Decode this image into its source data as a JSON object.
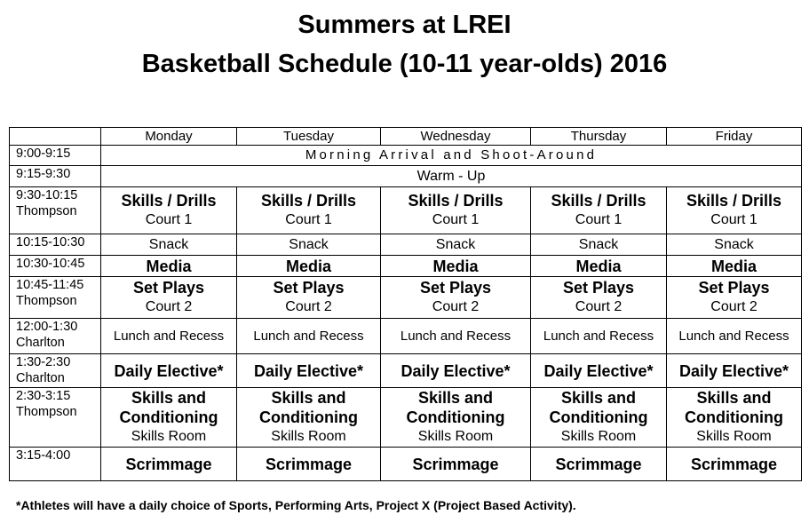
{
  "title": "Summers at LREI",
  "subtitle": "Basketball Schedule (10-11 year-olds) 2016",
  "days": [
    "Monday",
    "Tuesday",
    "Wednesday",
    "Thursday",
    "Friday"
  ],
  "rows": [
    {
      "time": [
        "9:00-9:15"
      ],
      "span": "Morning Arrival and Shoot-Around",
      "spaced": true
    },
    {
      "time": [
        "9:15-9:30"
      ],
      "span": "Warm - Up"
    },
    {
      "time": [
        "9:30-10:15",
        "Thompson"
      ],
      "cells": [
        [
          {
            "t": "Skills / Drills",
            "b": true
          },
          {
            "t": "Court 1"
          }
        ],
        [
          {
            "t": "Skills / Drills",
            "b": true
          },
          {
            "t": "Court 1"
          }
        ],
        [
          {
            "t": "Skills / Drills",
            "b": true
          },
          {
            "t": "Court 1"
          }
        ],
        [
          {
            "t": "Skills / Drills",
            "b": true
          },
          {
            "t": "Court 1"
          }
        ],
        [
          {
            "t": "Skills / Drills",
            "b": true
          },
          {
            "t": "Court 1"
          }
        ]
      ]
    },
    {
      "time": [
        "10:15-10:30"
      ],
      "cells": [
        [
          {
            "t": "Snack"
          }
        ],
        [
          {
            "t": "Snack"
          }
        ],
        [
          {
            "t": "Snack"
          }
        ],
        [
          {
            "t": "Snack"
          }
        ],
        [
          {
            "t": "Snack"
          }
        ]
      ]
    },
    {
      "time": [
        "10:30-10:45"
      ],
      "cells": [
        [
          {
            "t": "Media",
            "b": true
          }
        ],
        [
          {
            "t": "Media",
            "b": true
          }
        ],
        [
          {
            "t": "Media",
            "b": true
          }
        ],
        [
          {
            "t": "Media",
            "b": true
          }
        ],
        [
          {
            "t": "Media",
            "b": true
          }
        ]
      ]
    },
    {
      "time": [
        "10:45-11:45",
        "Thompson"
      ],
      "cells": [
        [
          {
            "t": "Set Plays",
            "b": true
          },
          {
            "t": "Court 2"
          }
        ],
        [
          {
            "t": "Set Plays",
            "b": true
          },
          {
            "t": "Court 2"
          }
        ],
        [
          {
            "t": "Set Plays",
            "b": true
          },
          {
            "t": "Court 2"
          }
        ],
        [
          {
            "t": "Set Plays",
            "b": true
          },
          {
            "t": "Court 2"
          }
        ],
        [
          {
            "t": "Set Plays",
            "b": true
          },
          {
            "t": "Court 2"
          }
        ]
      ]
    },
    {
      "time": [
        "12:00-1:30",
        "Charlton"
      ],
      "cells": [
        [
          {
            "t": "Lunch and Recess",
            "s": true
          }
        ],
        [
          {
            "t": "Lunch and Recess",
            "s": true
          }
        ],
        [
          {
            "t": "Lunch and Recess",
            "s": true
          }
        ],
        [
          {
            "t": "Lunch and Recess",
            "s": true
          }
        ],
        [
          {
            "t": "Lunch and Recess",
            "s": true
          }
        ]
      ]
    },
    {
      "time": [
        "1:30-2:30",
        "Charlton"
      ],
      "cells": [
        [
          {
            "t": "Daily Elective*",
            "b": true
          }
        ],
        [
          {
            "t": "Daily Elective*",
            "b": true
          }
        ],
        [
          {
            "t": "Daily Elective*",
            "b": true
          }
        ],
        [
          {
            "t": "Daily Elective*",
            "b": true
          }
        ],
        [
          {
            "t": "Daily Elective*",
            "b": true
          }
        ]
      ]
    },
    {
      "time": [
        "2:30-3:15",
        "Thompson"
      ],
      "cells": [
        [
          {
            "t": "Skills and",
            "b": true
          },
          {
            "t": "Conditioning",
            "b": true
          },
          {
            "t": "Skills Room"
          }
        ],
        [
          {
            "t": "Skills and",
            "b": true
          },
          {
            "t": "Conditioning",
            "b": true
          },
          {
            "t": "Skills Room"
          }
        ],
        [
          {
            "t": "Skills and",
            "b": true
          },
          {
            "t": "Conditioning",
            "b": true
          },
          {
            "t": "Skills Room"
          }
        ],
        [
          {
            "t": "Skills and",
            "b": true
          },
          {
            "t": "Conditioning",
            "b": true
          },
          {
            "t": "Skills Room"
          }
        ],
        [
          {
            "t": "Skills and",
            "b": true
          },
          {
            "t": "Conditioning",
            "b": true
          },
          {
            "t": "Skills Room"
          }
        ]
      ]
    },
    {
      "time": [
        "3:15-4:00"
      ],
      "cells": [
        [
          {
            "t": "Scrimmage",
            "b": true
          }
        ],
        [
          {
            "t": "Scrimmage",
            "b": true
          }
        ],
        [
          {
            "t": "Scrimmage",
            "b": true
          }
        ],
        [
          {
            "t": "Scrimmage",
            "b": true
          }
        ],
        [
          {
            "t": "Scrimmage",
            "b": true
          }
        ]
      ]
    }
  ],
  "footnote": "*Athletes will have a daily choice of Sports, Performing Arts, Project X (Project Based Activity)."
}
